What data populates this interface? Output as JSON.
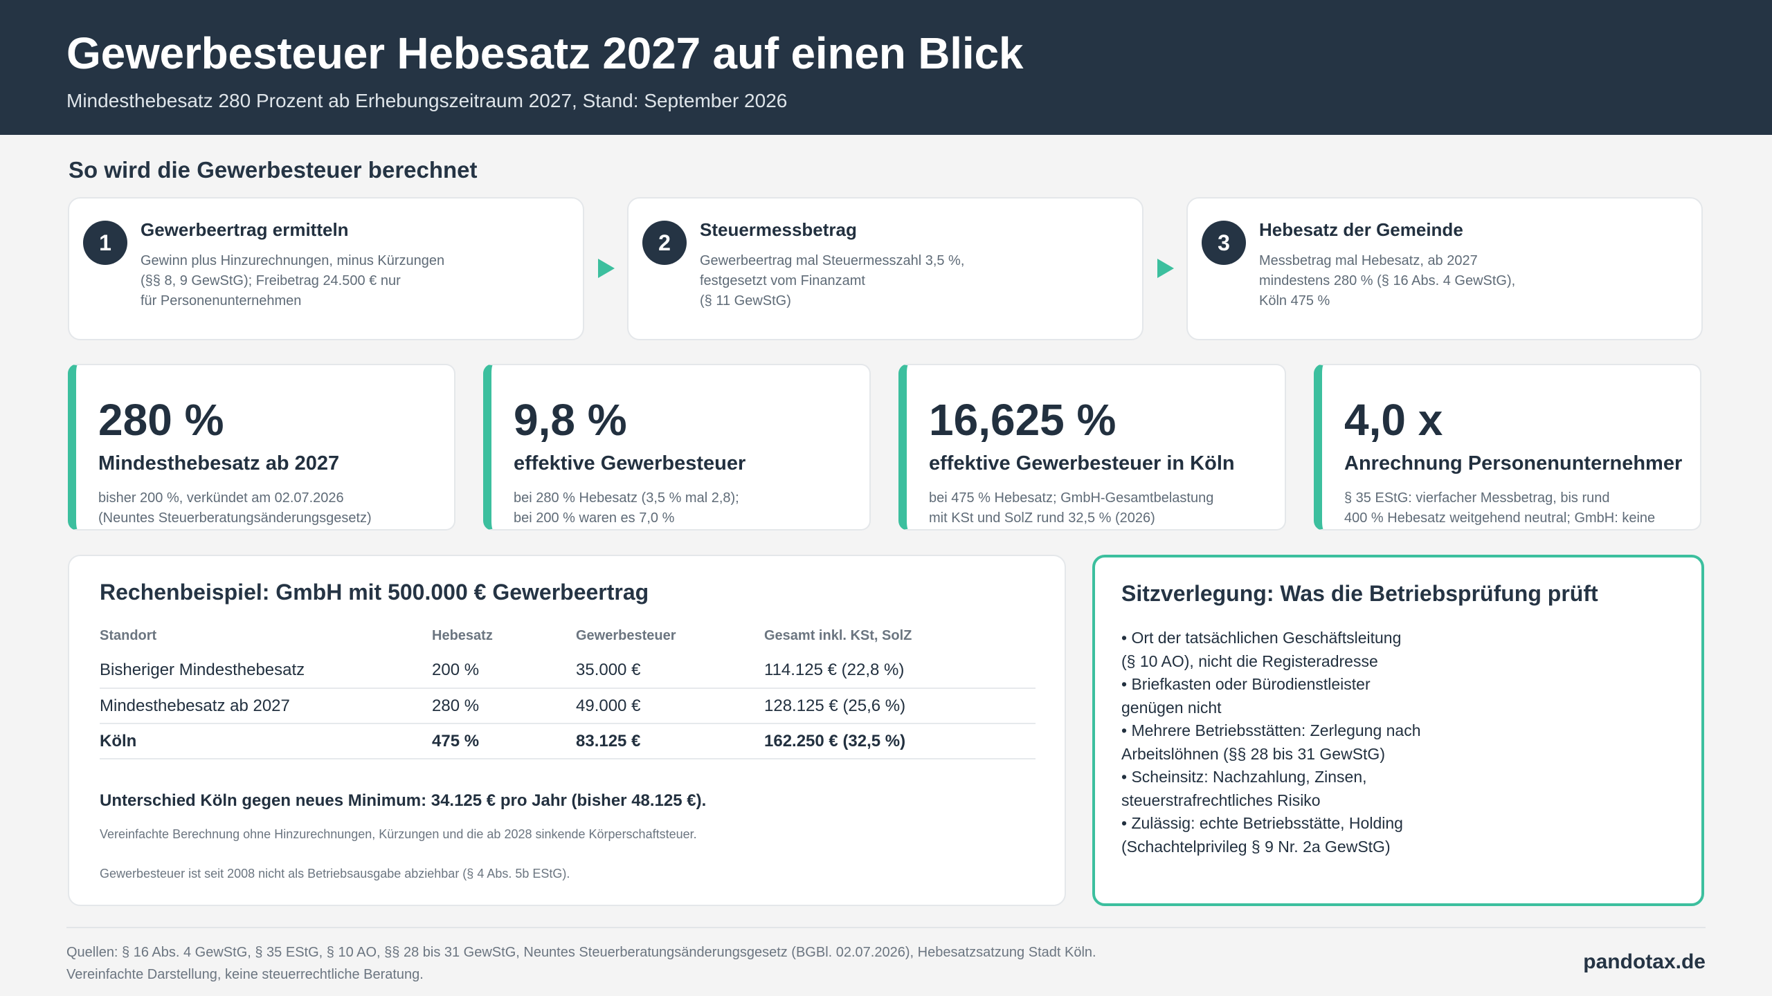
{
  "header": {
    "title": "Gewerbesteuer Hebesatz 2027 auf einen Blick",
    "subtitle": "Mindesthebesatz 280 Prozent ab Erhebungszeitraum 2027, Stand: September 2026"
  },
  "section_title": "So wird die Gewerbesteuer berechnet",
  "steps": [
    {
      "number": "1",
      "title": "Gewerbeertrag ermitteln",
      "text": "Gewinn plus Hinzurechnungen, minus Kürzungen\n(§§ 8, 9 GewStG); Freibetrag 24.500 € nur\nfür Personenunternehmen"
    },
    {
      "number": "2",
      "title": "Steuermessbetrag",
      "text": "Gewerbeertrag mal Steuermesszahl 3,5 %,\nfestgesetzt vom Finanzamt\n(§ 11 GewStG)"
    },
    {
      "number": "3",
      "title": "Hebesatz der Gemeinde",
      "text": "Messbetrag mal Hebesatz, ab 2027\nmindestens 280 % (§ 16 Abs. 4 GewStG),\nKöln 475 %"
    }
  ],
  "kpis": [
    {
      "value": "280 %",
      "label": "Mindesthebesatz ab 2027",
      "note": "bisher 200 %, verkündet am 02.07.2026\n(Neuntes Steuerberatungsänderungsgesetz)"
    },
    {
      "value": "9,8 %",
      "label": "effektive Gewerbesteuer",
      "note": "bei 280 % Hebesatz (3,5 % mal 2,8);\nbei 200 % waren es 7,0 %"
    },
    {
      "value": "16,625 %",
      "label": "effektive Gewerbesteuer in Köln",
      "note": "bei 475 % Hebesatz; GmbH-Gesamtbelastung\nmit KSt und SolZ rund 32,5 % (2026)"
    },
    {
      "value": "4,0 x",
      "label": "Anrechnung Personenunternehmer",
      "note": "§ 35 EStG: vierfacher Messbetrag, bis rund\n400 % Hebesatz weitgehend neutral; GmbH: keine"
    }
  ],
  "example": {
    "title": "Rechenbeispiel: GmbH mit 500.000 € Gewerbeertrag",
    "columns": [
      "Standort",
      "Hebesatz",
      "Gewerbesteuer",
      "Gesamt inkl. KSt, SolZ"
    ],
    "rows": [
      [
        "Bisheriger Mindesthebesatz",
        "200 %",
        "35.000 €",
        "114.125 € (22,8 %)"
      ],
      [
        "Mindesthebesatz ab 2027",
        "280 %",
        "49.000 €",
        "128.125 € (25,6 %)"
      ],
      [
        "Köln",
        "475 %",
        "83.125 €",
        "162.250 € (32,5 %)"
      ]
    ],
    "difference": "Unterschied Köln gegen neues Minimum: 34.125 € pro Jahr (bisher 48.125 €).",
    "note1": "Vereinfachte Berechnung ohne Hinzurechnungen, Kürzungen und die ab 2028 sinkende Körperschaftsteuer.",
    "note2": "Gewerbesteuer ist seit 2008 nicht als Betriebsausgabe abziehbar (§ 4 Abs. 5b EStG)."
  },
  "relocation": {
    "title": "Sitzverlegung: Was die Betriebsprüfung prüft",
    "lines": [
      "• Ort der tatsächlichen Geschäftsleitung",
      "(§ 10 AO), nicht die Registeradresse",
      "• Briefkasten oder Bürodienstleister",
      "genügen nicht",
      "• Mehrere Betriebsstätten: Zerlegung nach",
      "Arbeitslöhnen (§§ 28 bis 31 GewStG)",
      "• Scheinsitz: Nachzahlung, Zinsen,",
      "steuerstrafrechtliches Risiko",
      "• Zulässig: echte Betriebsstätte, Holding",
      "(Schachtelprivileg § 9 Nr. 2a GewStG)"
    ]
  },
  "footer": {
    "sources": "Quellen: § 16 Abs. 4 GewStG, § 35 EStG, § 10 AO, §§ 28 bis 31 GewStG, Neuntes Steuerberatungsänderungsgesetz (BGBl. 02.07.2026), Hebesatzsatzung Stadt Köln.",
    "disclaimer": "Vereinfachte Darstellung, keine steuerrechtliche Beratung.",
    "brand": "pandotax.de"
  },
  "colors": {
    "header_bg": "#253444",
    "accent": "#3cbf9e",
    "page_bg": "#f4f4f4"
  }
}
